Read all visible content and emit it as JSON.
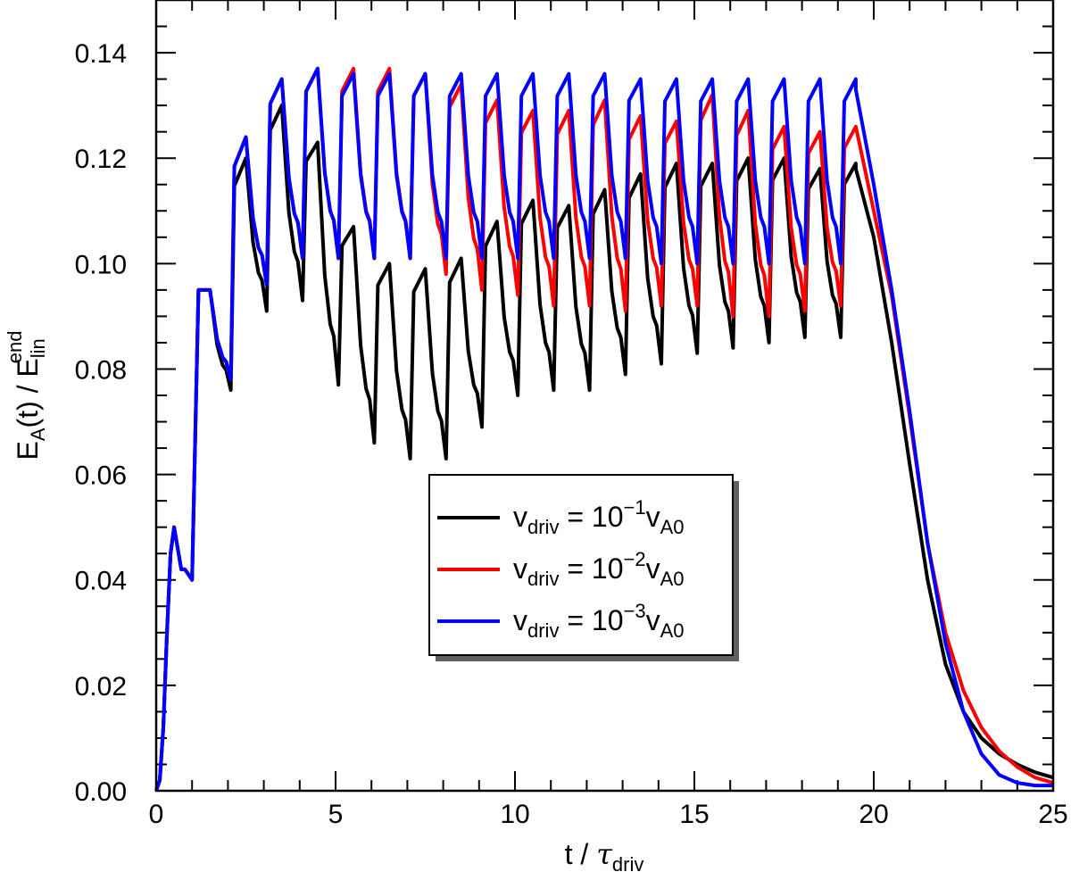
{
  "chart_data": {
    "type": "line",
    "xlabel": {
      "main": "t / ",
      "symbol": "τ",
      "sub": "driv"
    },
    "ylabel": {
      "main1": "E",
      "sub1": "A",
      "main2": "(t) / E",
      "sub2": "lin",
      "sup2": "end"
    },
    "xlim": [
      0,
      25
    ],
    "ylim": [
      0,
      0.15
    ],
    "xticks": [
      0,
      5,
      10,
      15,
      20,
      25
    ],
    "xtick_labels": [
      "0",
      "5",
      "10",
      "15",
      "20",
      "25"
    ],
    "yticks": [
      0,
      0.02,
      0.04,
      0.06,
      0.08,
      0.1,
      0.12,
      0.14
    ],
    "ytick_labels": [
      "0.00",
      "0.02",
      "0.04",
      "0.06",
      "0.08",
      "0.10",
      "0.12",
      "0.14"
    ],
    "grid": false,
    "legend_position": "center",
    "series": [
      {
        "name": "v_driv = 10^-1 v_A0",
        "legend": {
          "v": "v",
          "sub": "driv",
          "eq": " = 10",
          "exp": "−1",
          "v2": "v",
          "sub2": "A0"
        },
        "color": "#000000",
        "segment_range": [
          1.0,
          19.5
        ],
        "peaks": [
          0.095,
          0.12,
          0.13,
          0.123,
          0.107,
          0.1,
          0.099,
          0.101,
          0.108,
          0.112,
          0.111,
          0.114,
          0.117,
          0.119,
          0.119,
          0.12,
          0.12,
          0.118,
          0.119
        ],
        "troughs": [
          0.076,
          0.091,
          0.093,
          0.077,
          0.066,
          0.063,
          0.063,
          0.069,
          0.075,
          0.076,
          0.076,
          0.079,
          0.081,
          0.083,
          0.084,
          0.085,
          0.086,
          0.086
        ],
        "tail": [
          [
            19.5,
            0.118
          ],
          [
            20.0,
            0.105
          ],
          [
            20.5,
            0.085
          ],
          [
            21.0,
            0.062
          ],
          [
            21.5,
            0.04
          ],
          [
            22.0,
            0.024
          ],
          [
            22.5,
            0.015
          ],
          [
            23.0,
            0.01
          ],
          [
            23.5,
            0.007
          ],
          [
            24.0,
            0.005
          ],
          [
            24.5,
            0.0035
          ],
          [
            25.0,
            0.0025
          ]
        ]
      },
      {
        "name": "v_driv = 10^-2 v_A0",
        "legend": {
          "v": "v",
          "sub": "driv",
          "eq": " = 10",
          "exp": "−2",
          "v2": "v",
          "sub2": "A0"
        },
        "color": "#ff0000",
        "segment_range": [
          1.0,
          19.5
        ],
        "peaks": [
          0.095,
          0.124,
          0.135,
          0.137,
          0.137,
          0.137,
          0.136,
          0.134,
          0.131,
          0.129,
          0.129,
          0.131,
          0.128,
          0.127,
          0.132,
          0.129,
          0.126,
          0.125,
          0.126
        ],
        "troughs": [
          0.078,
          0.096,
          0.101,
          0.101,
          0.101,
          0.101,
          0.098,
          0.095,
          0.094,
          0.092,
          0.092,
          0.091,
          0.092,
          0.092,
          0.09,
          0.09,
          0.091,
          0.092
        ],
        "tail": [
          [
            19.5,
            0.126
          ],
          [
            20.0,
            0.11
          ],
          [
            20.5,
            0.094
          ],
          [
            21.0,
            0.071
          ],
          [
            21.5,
            0.047
          ],
          [
            22.0,
            0.03
          ],
          [
            22.5,
            0.019
          ],
          [
            23.0,
            0.012
          ],
          [
            23.5,
            0.0075
          ],
          [
            24.0,
            0.0045
          ],
          [
            24.5,
            0.0025
          ],
          [
            25.0,
            0.0015
          ]
        ]
      },
      {
        "name": "v_driv = 10^-3 v_A0",
        "legend": {
          "v": "v",
          "sub": "driv",
          "eq": " = 10",
          "exp": "−3",
          "v2": "v",
          "sub2": "A0"
        },
        "color": "#0000ff",
        "segment_range": [
          1.0,
          19.5
        ],
        "peaks": [
          0.095,
          0.124,
          0.135,
          0.137,
          0.136,
          0.136,
          0.136,
          0.136,
          0.136,
          0.136,
          0.136,
          0.136,
          0.135,
          0.135,
          0.135,
          0.135,
          0.135,
          0.135,
          0.135
        ],
        "troughs": [
          0.078,
          0.096,
          0.101,
          0.101,
          0.101,
          0.101,
          0.101,
          0.101,
          0.101,
          0.101,
          0.101,
          0.101,
          0.1,
          0.1,
          0.1,
          0.1,
          0.1,
          0.1
        ],
        "tail": [
          [
            19.5,
            0.133
          ],
          [
            20.0,
            0.115
          ],
          [
            20.5,
            0.095
          ],
          [
            21.0,
            0.072
          ],
          [
            21.5,
            0.047
          ],
          [
            22.0,
            0.028
          ],
          [
            22.5,
            0.015
          ],
          [
            23.0,
            0.007
          ],
          [
            23.5,
            0.003
          ],
          [
            24.0,
            0.0015
          ],
          [
            24.5,
            0.001
          ],
          [
            25.0,
            0.001
          ]
        ]
      }
    ],
    "start_segment": [
      [
        0.0,
        0.0
      ],
      [
        0.1,
        0.002
      ],
      [
        0.2,
        0.012
      ],
      [
        0.3,
        0.03
      ],
      [
        0.4,
        0.045
      ],
      [
        0.5,
        0.05
      ],
      [
        0.6,
        0.046
      ],
      [
        0.7,
        0.042
      ],
      [
        0.8,
        0.042
      ],
      [
        0.9,
        0.041
      ],
      [
        1.0,
        0.04
      ]
    ]
  }
}
